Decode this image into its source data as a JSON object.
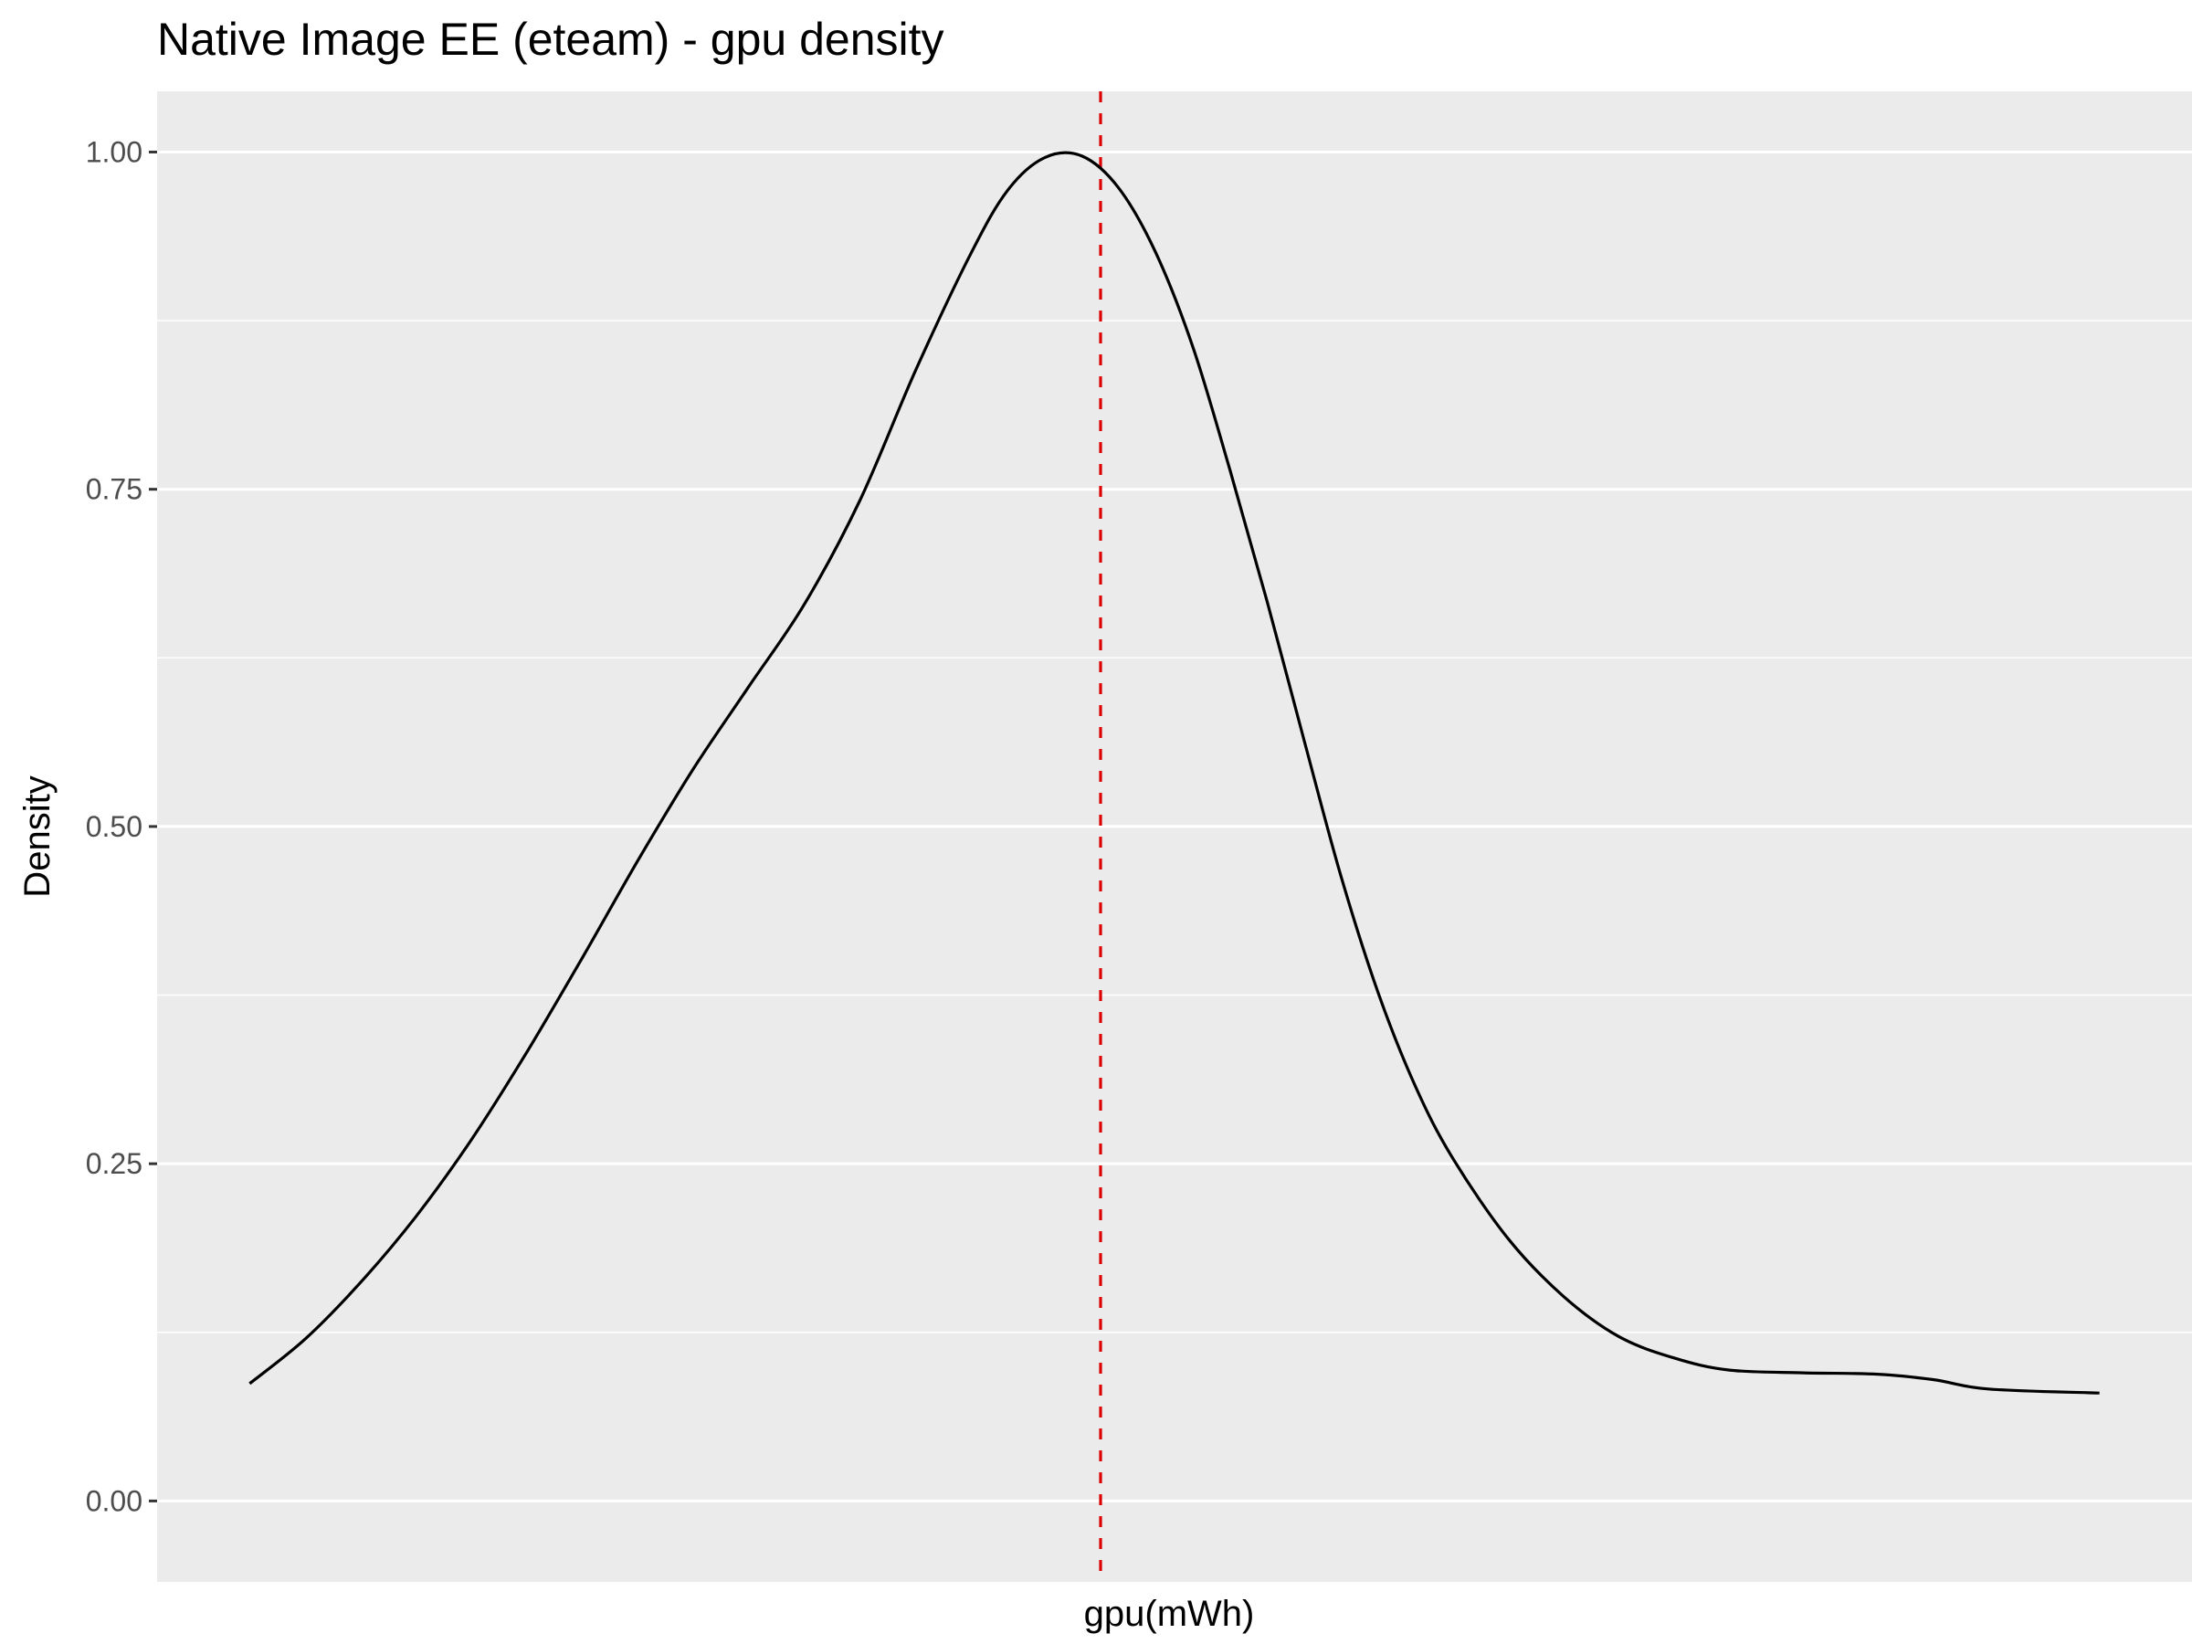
{
  "chart_data": {
    "type": "line",
    "title": "Native Image EE (eteam) - gpu density",
    "xlabel": "gpu(mWh)",
    "ylabel": "Density",
    "ylim": [
      -0.06,
      1.045
    ],
    "xlim": [
      -0.05,
      1.05
    ],
    "yticks": [
      0.0,
      0.25,
      0.5,
      0.75,
      1.0
    ],
    "ytick_labels": [
      "0.00",
      "0.25",
      "0.50",
      "0.75",
      "1.00"
    ],
    "grid": true,
    "colors": {
      "panel": "#ebebeb",
      "grid": "#ffffff",
      "line": "#000000",
      "marker": "#dd0000"
    },
    "series": [
      {
        "values": [
          [
            0.0,
            0.087
          ],
          [
            0.03,
            0.12
          ],
          [
            0.06,
            0.162
          ],
          [
            0.09,
            0.211
          ],
          [
            0.12,
            0.268
          ],
          [
            0.15,
            0.333
          ],
          [
            0.18,
            0.403
          ],
          [
            0.21,
            0.475
          ],
          [
            0.24,
            0.543
          ],
          [
            0.27,
            0.604
          ],
          [
            0.3,
            0.665
          ],
          [
            0.33,
            0.742
          ],
          [
            0.36,
            0.838
          ],
          [
            0.39,
            0.925
          ],
          [
            0.41,
            0.972
          ],
          [
            0.43,
            0.996
          ],
          [
            0.45,
            0.997
          ],
          [
            0.47,
            0.973
          ],
          [
            0.49,
            0.925
          ],
          [
            0.51,
            0.855
          ],
          [
            0.53,
            0.764
          ],
          [
            0.55,
            0.667
          ],
          [
            0.57,
            0.564
          ],
          [
            0.59,
            0.463
          ],
          [
            0.61,
            0.377
          ],
          [
            0.63,
            0.308
          ],
          [
            0.65,
            0.255
          ],
          [
            0.68,
            0.195
          ],
          [
            0.71,
            0.152
          ],
          [
            0.74,
            0.122
          ],
          [
            0.77,
            0.106
          ],
          [
            0.8,
            0.097
          ],
          [
            0.84,
            0.095
          ],
          [
            0.88,
            0.094
          ],
          [
            0.91,
            0.09
          ],
          [
            0.94,
            0.083
          ],
          [
            1.0,
            0.08
          ]
        ]
      }
    ],
    "reference_line": {
      "orientation": "vertical",
      "x": 0.46,
      "style": "dashed"
    }
  }
}
